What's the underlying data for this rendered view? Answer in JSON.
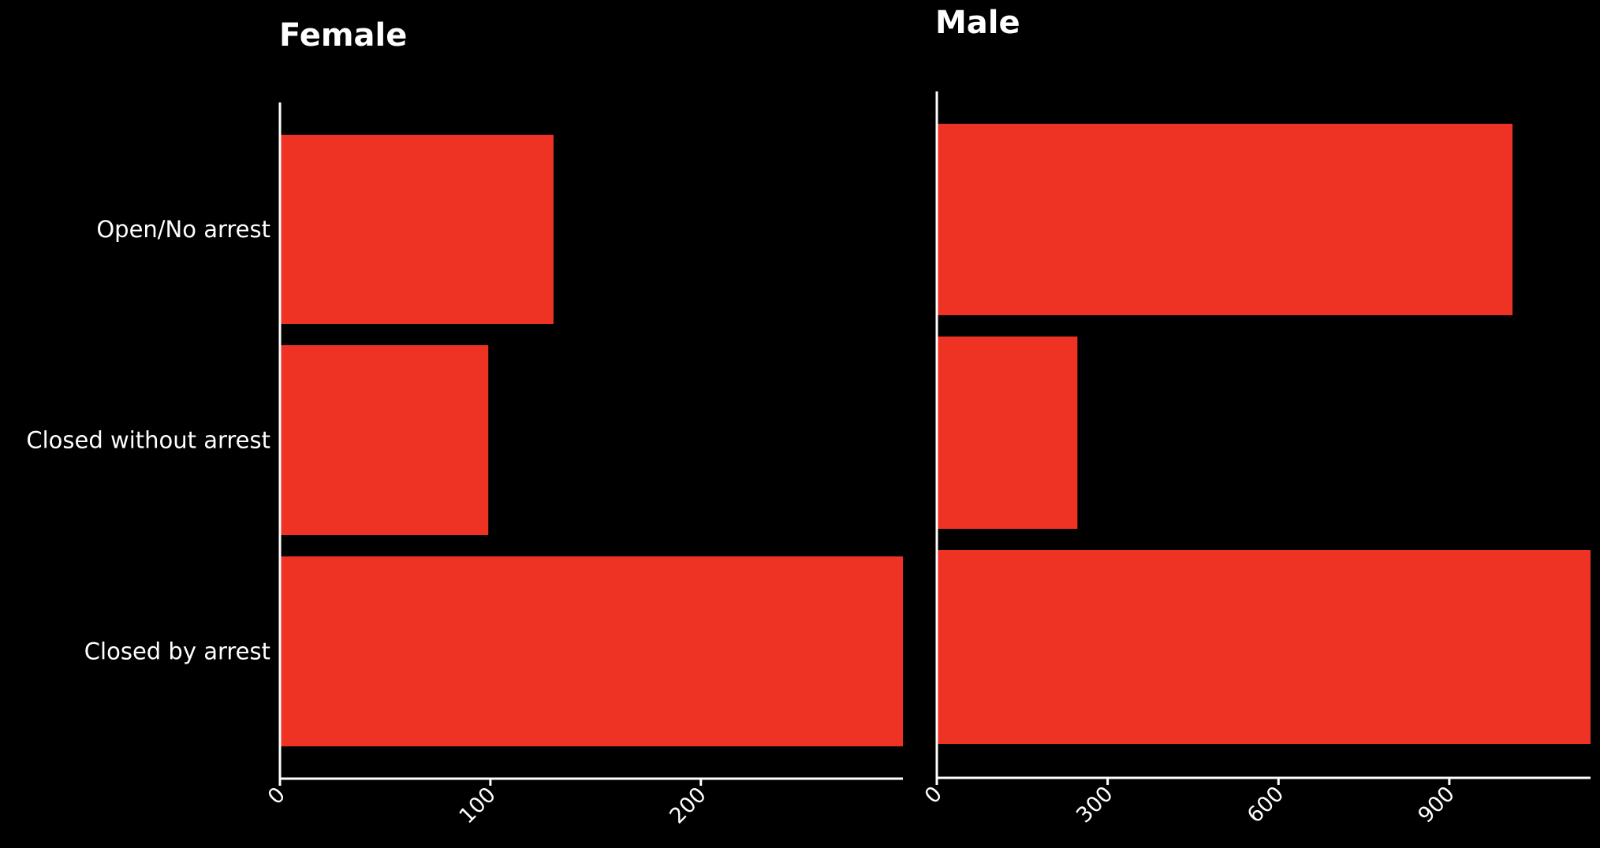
{
  "chart_data": [
    {
      "type": "bar",
      "orientation": "horizontal",
      "title": "Female",
      "categories": [
        "Open/No arrest",
        "Closed without arrest",
        "Closed by arrest"
      ],
      "values": [
        130,
        99,
        296
      ],
      "xlim": [
        0,
        296
      ],
      "xticks": [
        0,
        100,
        200
      ],
      "xlabel": "",
      "ylabel": "",
      "bar_color": "#ee3224",
      "grid": false,
      "legend": "none"
    },
    {
      "type": "bar",
      "orientation": "horizontal",
      "title": "Male",
      "categories": [
        "Open/No arrest",
        "Closed without arrest",
        "Closed by arrest"
      ],
      "values": [
        1011,
        247,
        1148
      ],
      "xlim": [
        0,
        1148
      ],
      "xticks": [
        0,
        300,
        600,
        900
      ],
      "xlabel": "",
      "ylabel": "",
      "bar_color": "#ee3224",
      "grid": false,
      "legend": "none"
    }
  ],
  "colors": {
    "background": "#000000",
    "foreground": "#ffffff",
    "bar": "#ee3224"
  }
}
